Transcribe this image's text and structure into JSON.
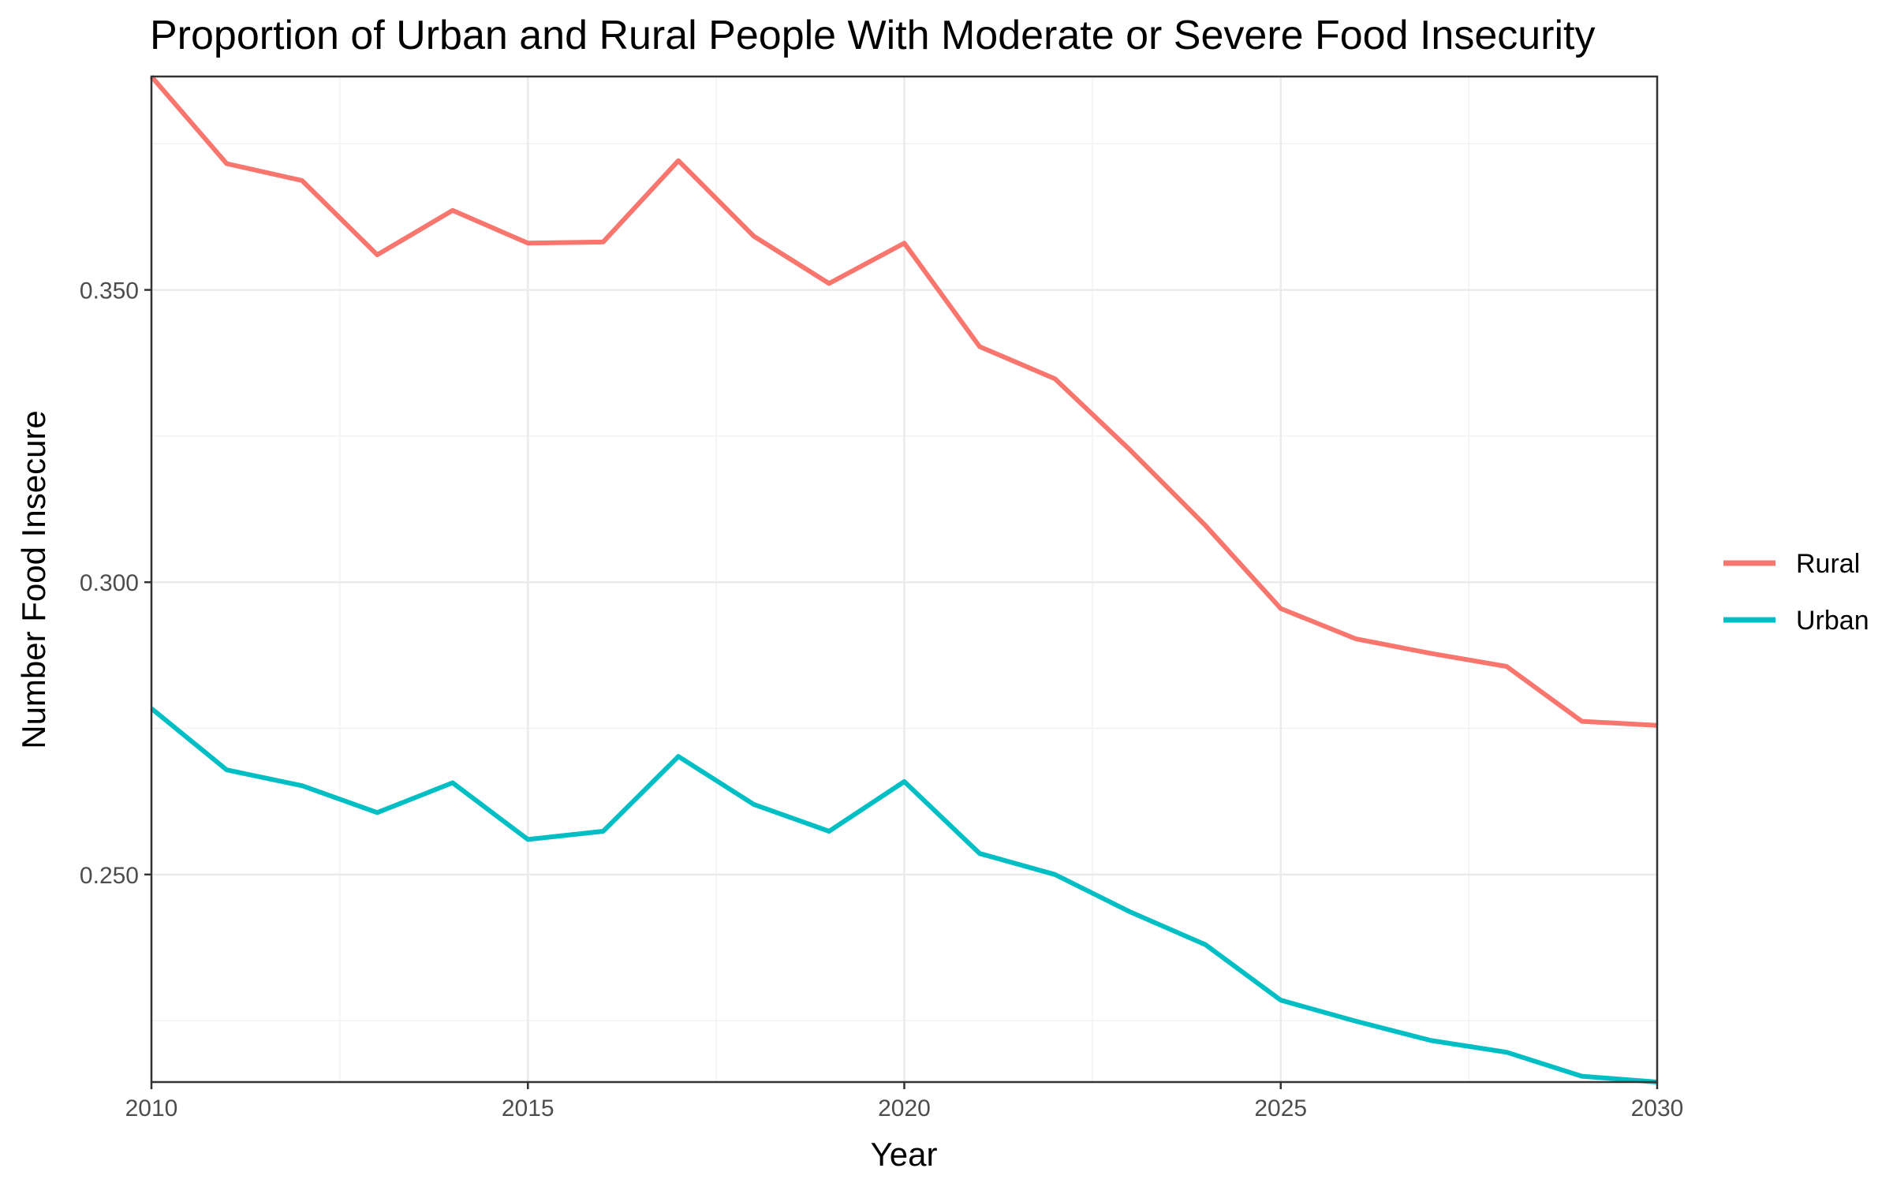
{
  "chart_data": {
    "type": "line",
    "title": "Proportion of Urban and Rural People With Moderate or Severe Food Insecurity",
    "xlabel": "Year",
    "ylabel": "Number Food Insecure",
    "xlim": [
      2010,
      2030
    ],
    "ylim": [
      0.2145,
      0.3865
    ],
    "x_ticks": [
      2010,
      2015,
      2020,
      2025,
      2030
    ],
    "x_tick_labels": [
      "2010",
      "2015",
      "2020",
      "2025",
      "2030"
    ],
    "y_ticks": [
      0.25,
      0.3,
      0.35
    ],
    "y_tick_labels": [
      "0.250",
      "0.300",
      "0.350"
    ],
    "x_minor": [
      2012.5,
      2017.5,
      2022.5,
      2027.5
    ],
    "y_minor": [
      0.225,
      0.275,
      0.325,
      0.375
    ],
    "grid": true,
    "legend_position": "right",
    "x": [
      2010,
      2011,
      2012,
      2013,
      2014,
      2015,
      2016,
      2017,
      2018,
      2019,
      2020,
      2021,
      2022,
      2023,
      2024,
      2025,
      2026,
      2027,
      2028,
      2029,
      2030
    ],
    "series": [
      {
        "name": "Rural",
        "color": "#F8766D",
        "values": [
          0.3865,
          0.3716,
          0.3687,
          0.356,
          0.3636,
          0.358,
          0.3582,
          0.3721,
          0.3592,
          0.3511,
          0.358,
          0.3403,
          0.3348,
          0.3226,
          0.3097,
          0.2955,
          0.2903,
          0.2878,
          0.2856,
          0.2762,
          0.2755
        ]
      },
      {
        "name": "Urban",
        "color": "#00BFC4",
        "values": [
          0.2784,
          0.2679,
          0.2652,
          0.2606,
          0.2657,
          0.256,
          0.2574,
          0.2702,
          0.262,
          0.2574,
          0.2659,
          0.2536,
          0.25,
          0.2436,
          0.238,
          0.2285,
          0.2249,
          0.2216,
          0.2196,
          0.2155,
          0.2145
        ]
      }
    ]
  }
}
